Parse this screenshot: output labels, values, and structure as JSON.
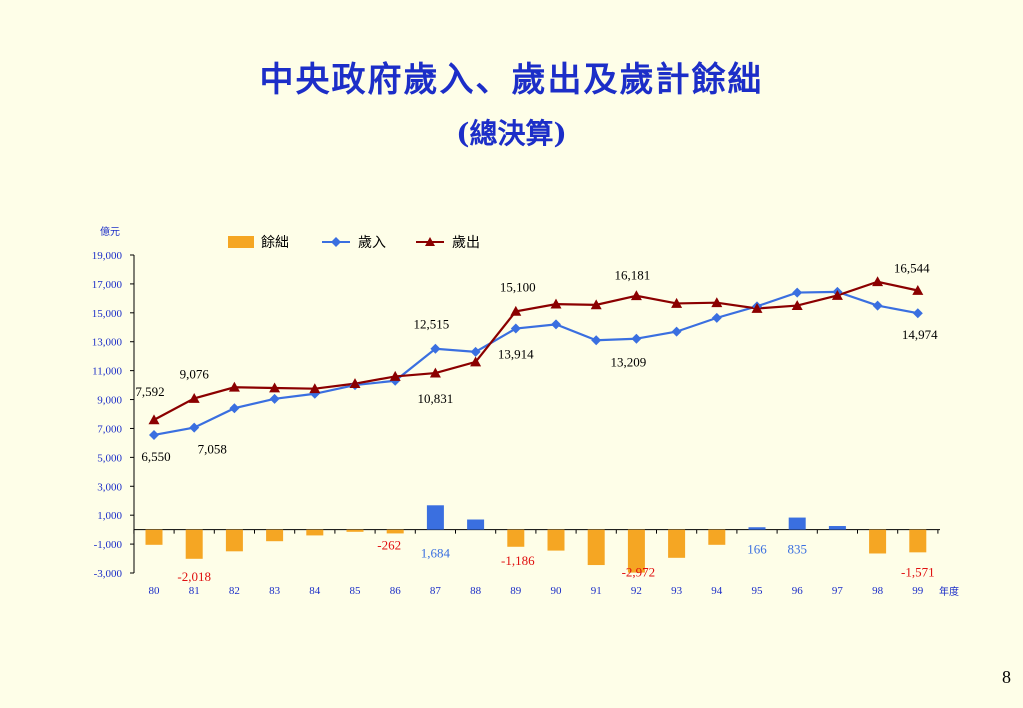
{
  "title": "中央政府歲入、歲出及歲計餘絀",
  "subtitle": "(總決算)",
  "page_number": "8",
  "colors": {
    "surplus_positive": "#3a6fe0",
    "surplus_negative": "#f5a623",
    "revenue": "#3a6fe0",
    "expenditure": "#8b0000",
    "title": "#1c2ec8",
    "negative_label": "#e01010"
  },
  "chart_data": {
    "type": "bar+line",
    "title": "中央政府歲入、歲出及歲計餘絀",
    "ylabel": "億元",
    "xlabel": "年度",
    "ylim": [
      -3000,
      19000
    ],
    "yticks": [
      19000,
      17000,
      15000,
      13000,
      11000,
      9000,
      7000,
      5000,
      3000,
      1000,
      -1000,
      -3000
    ],
    "ytick_labels": [
      "19,000",
      "17,000",
      "15,000",
      "13,000",
      "11,000",
      "9,000",
      "7,000",
      "5,000",
      "3,000",
      "1,000",
      "-1,000",
      "-3,000"
    ],
    "categories": [
      "80",
      "81",
      "82",
      "83",
      "84",
      "85",
      "86",
      "87",
      "88",
      "89",
      "90",
      "91",
      "92",
      "93",
      "94",
      "95",
      "96",
      "97",
      "98",
      "99"
    ],
    "legend": [
      "餘絀",
      "歲入",
      "歲出"
    ],
    "legend_position": "top",
    "grid": false,
    "series": [
      {
        "name": "餘絀",
        "type": "bar",
        "values": [
          -1050,
          -2018,
          -1500,
          -800,
          -400,
          -150,
          -262,
          1684,
          700,
          -1186,
          -1450,
          -2450,
          -2972,
          -1950,
          -1050,
          166,
          835,
          250,
          -1650,
          -1571
        ]
      },
      {
        "name": "歲入",
        "type": "line",
        "marker": "diamond",
        "values": [
          6550,
          7058,
          8400,
          9050,
          9400,
          10000,
          10300,
          12515,
          12300,
          13914,
          14200,
          13100,
          13209,
          13700,
          14650,
          15450,
          16400,
          16450,
          15500,
          14974
        ]
      },
      {
        "name": "歲出",
        "type": "line",
        "marker": "triangle",
        "values": [
          7592,
          9076,
          9850,
          9800,
          9750,
          10100,
          10600,
          10831,
          11600,
          15100,
          15600,
          15550,
          16181,
          15650,
          15700,
          15300,
          15500,
          16200,
          17150,
          16544
        ]
      }
    ],
    "data_labels": [
      {
        "series": "歲出",
        "index": 0,
        "text": "7,592"
      },
      {
        "series": "歲出",
        "index": 1,
        "text": "9,076"
      },
      {
        "series": "歲出",
        "index": 9,
        "text": "15,100"
      },
      {
        "series": "歲出",
        "index": 12,
        "text": "16,181"
      },
      {
        "series": "歲出",
        "index": 19,
        "text": "16,544"
      },
      {
        "series": "歲入",
        "index": 0,
        "text": "6,550"
      },
      {
        "series": "歲入",
        "index": 1,
        "text": "7,058"
      },
      {
        "series": "歲入",
        "index": 7,
        "text": "12,515"
      },
      {
        "series": "歲出",
        "index": 7,
        "text": "10,831"
      },
      {
        "series": "歲入",
        "index": 9,
        "text": "13,914"
      },
      {
        "series": "歲入",
        "index": 12,
        "text": "13,209"
      },
      {
        "series": "歲入",
        "index": 19,
        "text": "14,974"
      },
      {
        "series": "餘絀",
        "index": 1,
        "text": "-2,018"
      },
      {
        "series": "餘絀",
        "index": 6,
        "text": "-262"
      },
      {
        "series": "餘絀",
        "index": 7,
        "text": "1,684"
      },
      {
        "series": "餘絀",
        "index": 9,
        "text": "-1,186"
      },
      {
        "series": "餘絀",
        "index": 12,
        "text": "-2,972"
      },
      {
        "series": "餘絀",
        "index": 15,
        "text": "166"
      },
      {
        "series": "餘絀",
        "index": 16,
        "text": "835"
      },
      {
        "series": "餘絀",
        "index": 19,
        "text": "-1,571"
      }
    ]
  }
}
